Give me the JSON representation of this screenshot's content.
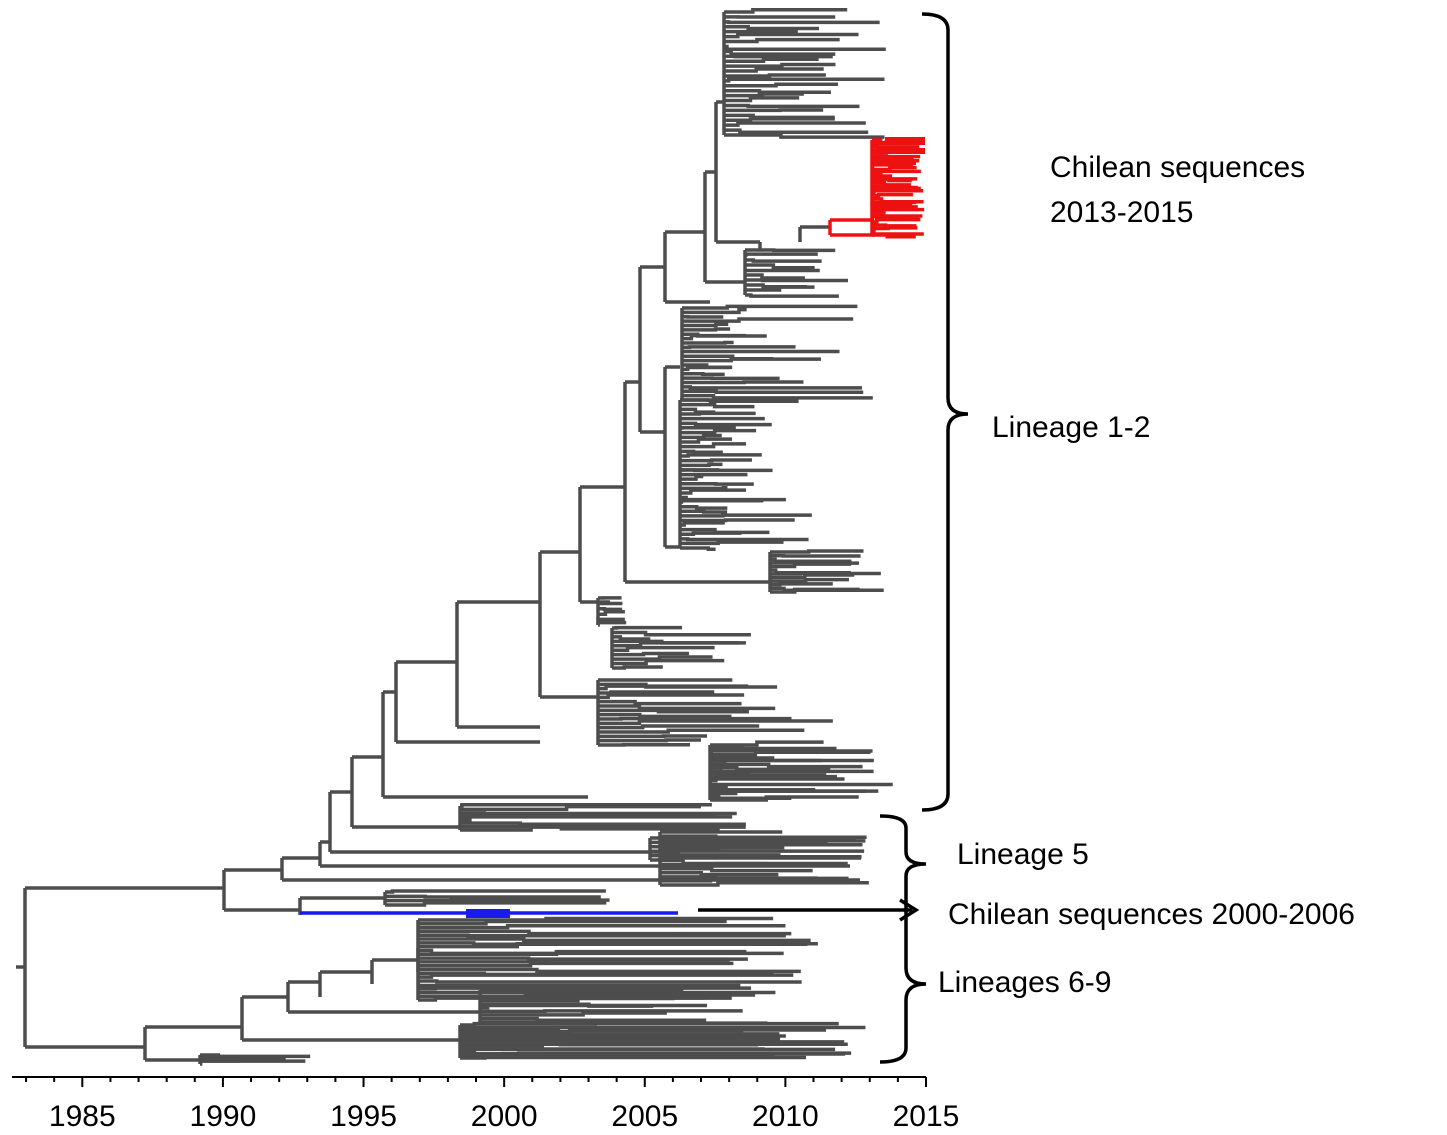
{
  "colors": {
    "branch": "#4d4d4d",
    "chilean_recent": "#ee1111",
    "chilean_old": "#1a1aee",
    "bracket": "#000000",
    "background": "#ffffff"
  },
  "axis": {
    "min_year": 1982.5,
    "max_year": 2015,
    "ticks": [
      "1985",
      "1990",
      "1995",
      "2000",
      "2005",
      "2010",
      "2015"
    ]
  },
  "labels": {
    "chilean_recent_line1": "Chilean sequences",
    "chilean_recent_line2": "2013-2015",
    "lineage_1_2": "Lineage 1-2",
    "lineage_5": "Lineage 5",
    "chilean_old": "Chilean sequences 2000-2006",
    "lineages_6_9": "Lineages 6-9"
  }
}
